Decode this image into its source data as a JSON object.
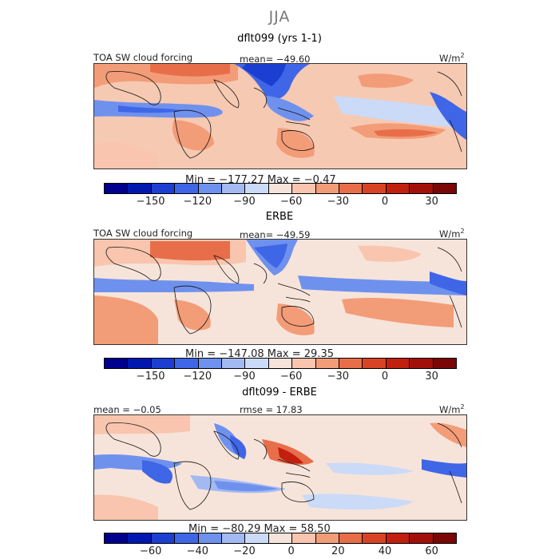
{
  "figure": {
    "title": "JJA",
    "units_prefix": "W/m",
    "units_sup": "2"
  },
  "panels": [
    {
      "title": "dflt099 (yrs 1-1)",
      "left_label": "TOA SW cloud forcing",
      "center_label": "mean= −49.60",
      "stats": "Min = −177.27 Max =  −0.47"
    },
    {
      "title": "ERBE",
      "left_label": "TOA SW cloud forcing",
      "center_label": "mean= −49.59",
      "stats": "Min = −147.08 Max =  29.35"
    },
    {
      "title": "dflt099 - ERBE",
      "left_label": "mean =  −0.05",
      "center_label": "rmse =  17.83",
      "stats": "Min = −80.29 Max =  58.50"
    }
  ],
  "colorbars": {
    "colors": [
      "#00008e",
      "#0018b0",
      "#1c3fd2",
      "#3f66e6",
      "#6f91ee",
      "#a2b9f2",
      "#cbdaf7",
      "#f6e4da",
      "#f9c5ae",
      "#f39c78",
      "#e86e4a",
      "#d94325",
      "#c21f0f",
      "#a3100a",
      "#7a0606"
    ],
    "full_ticks": [
      "−150",
      "−120",
      "−90",
      "−60",
      "−30",
      "0",
      "30"
    ],
    "diff_ticks": [
      "−60",
      "−40",
      "−20",
      "0",
      "20",
      "40",
      "60"
    ]
  },
  "chart_data": [
    {
      "type": "heatmap",
      "title": "dflt099 (yrs 1-1)",
      "variable": "TOA SW cloud forcing",
      "units": "W/m2",
      "mean": -49.6,
      "min": -177.27,
      "max": -0.47,
      "color_levels": [
        -165,
        -150,
        -135,
        -120,
        -105,
        -90,
        -75,
        -60,
        -45,
        -30,
        -15,
        0,
        15,
        30
      ],
      "colorbar_ticks": [
        -150,
        -120,
        -90,
        -60,
        -30,
        0,
        30
      ],
      "lon_range": [
        0,
        360
      ],
      "lat_range": [
        -40,
        40
      ]
    },
    {
      "type": "heatmap",
      "title": "ERBE",
      "variable": "TOA SW cloud forcing",
      "units": "W/m2",
      "mean": -49.59,
      "min": -147.08,
      "max": 29.35,
      "color_levels": [
        -165,
        -150,
        -135,
        -120,
        -105,
        -90,
        -75,
        -60,
        -45,
        -30,
        -15,
        0,
        15,
        30
      ],
      "colorbar_ticks": [
        -150,
        -120,
        -90,
        -60,
        -30,
        0,
        30
      ],
      "lon_range": [
        0,
        360
      ],
      "lat_range": [
        -40,
        40
      ]
    },
    {
      "type": "heatmap",
      "title": "dflt099 - ERBE",
      "units": "W/m2",
      "mean": -0.05,
      "rmse": 17.83,
      "min": -80.29,
      "max": 58.5,
      "color_levels": [
        -70,
        -60,
        -50,
        -40,
        -30,
        -20,
        -10,
        0,
        10,
        20,
        30,
        40,
        50,
        60
      ],
      "colorbar_ticks": [
        -60,
        -40,
        -20,
        0,
        20,
        40,
        60
      ],
      "lon_range": [
        0,
        360
      ],
      "lat_range": [
        -40,
        40
      ]
    }
  ]
}
